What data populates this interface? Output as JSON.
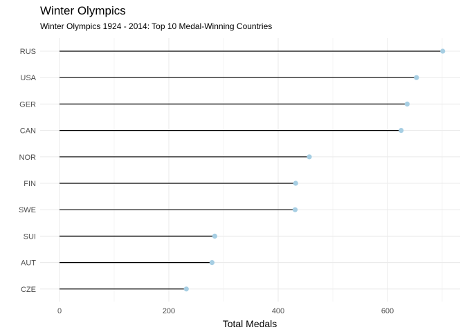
{
  "chart_data": {
    "type": "lollipop",
    "title": "Winter Olympics",
    "subtitle": "Winter Olympics 1924 - 2014: Top 10 Medal-Winning Countries",
    "xlabel": "Total Medals",
    "ylabel": "",
    "xlim": [
      0,
      720
    ],
    "x_ticks": [
      0,
      200,
      400,
      600
    ],
    "categories": [
      "RUS",
      "USA",
      "GER",
      "CAN",
      "NOR",
      "FIN",
      "SWE",
      "SUI",
      "AUT",
      "CZE"
    ],
    "values": [
      701,
      653,
      636,
      625,
      457,
      432,
      431,
      284,
      279,
      232
    ],
    "grid": true,
    "colors": {
      "segment": "#000000",
      "point": "#a6cee3",
      "grid": "#ebebeb",
      "grid_minor": "#f3f3f3"
    }
  }
}
